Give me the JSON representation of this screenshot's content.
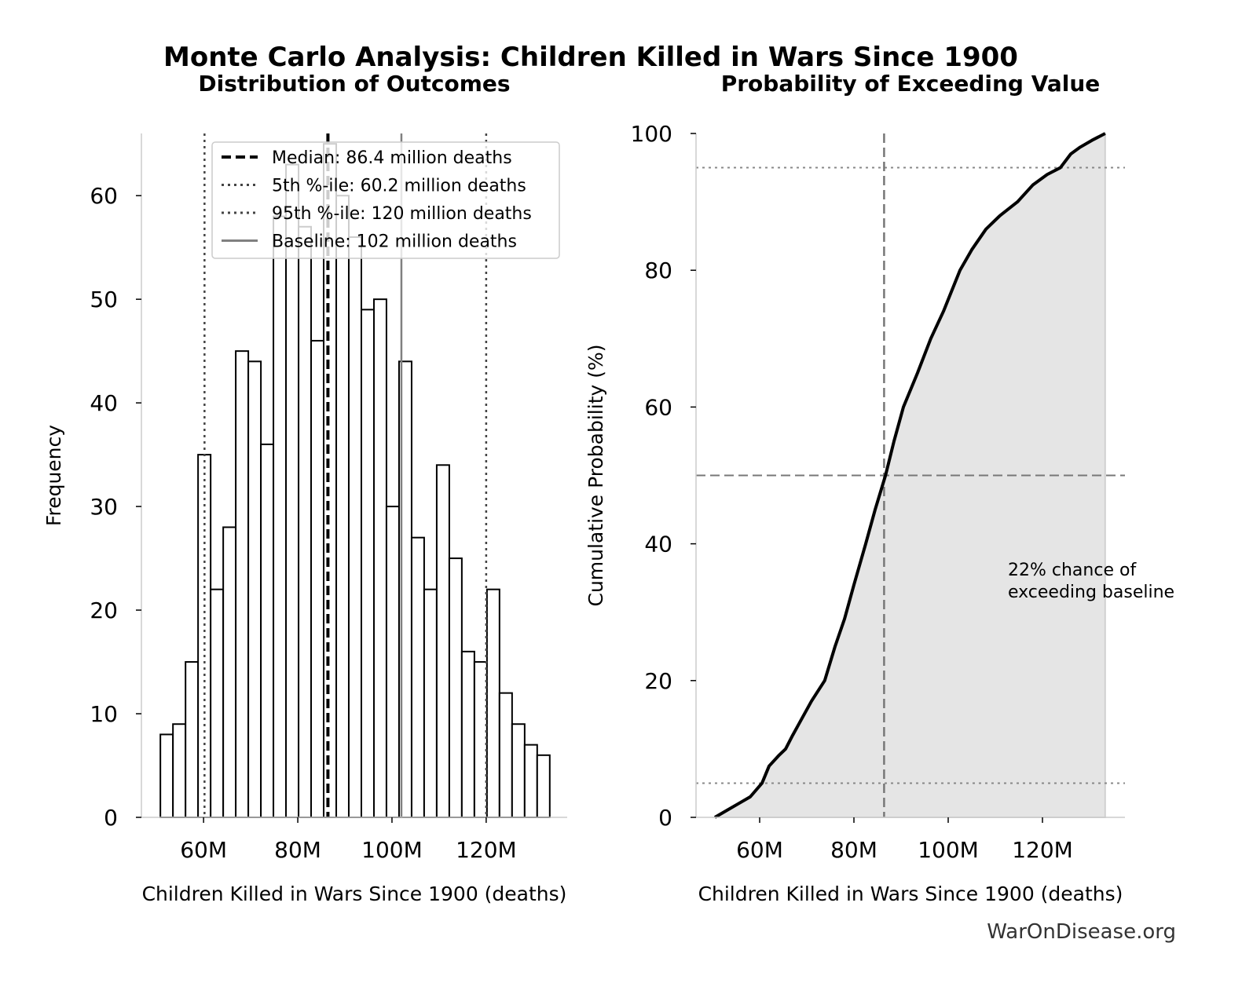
{
  "title": "Monte Carlo Analysis: Children Killed in Wars Since 1900",
  "footer": "WarOnDisease.org",
  "chart_data": [
    {
      "type": "histogram",
      "title": "Distribution of Outcomes",
      "x_label": "Children Killed in Wars Since 1900 (deaths)",
      "y_label": "Frequency",
      "bins": [
        50830000,
        53500000,
        56170000,
        58830000,
        61500000,
        64170000,
        66830000,
        69500000,
        72170000,
        74830000,
        77500000,
        80170000,
        82830000,
        85500000,
        88170000,
        90830000,
        93500000,
        96170000,
        98830000,
        101500000,
        104170000,
        106830000,
        109500000,
        112170000,
        114830000,
        117500000,
        120170000,
        122830000,
        125500000,
        128170000,
        130830000,
        133500000
      ],
      "values": [
        8,
        9,
        15,
        35,
        22,
        28,
        45,
        44,
        36,
        58,
        63,
        57,
        46,
        65,
        60,
        56,
        49,
        50,
        30,
        44,
        27,
        22,
        34,
        25,
        16,
        15,
        22,
        12,
        9,
        7,
        6
      ],
      "color": "#ffffff",
      "edgecolor": "#000000",
      "xlim": [
        46800000,
        137200000
      ],
      "xticks": [
        {
          "value": 60000000,
          "label": "60M"
        },
        {
          "value": 80000000,
          "label": "80M"
        },
        {
          "value": 100000000,
          "label": "100M"
        },
        {
          "value": 120000000,
          "label": "120M"
        }
      ],
      "ylim": [
        0,
        66
      ],
      "yticks": [
        0,
        10,
        20,
        30,
        40,
        50,
        60
      ],
      "legend": "upper right",
      "vlines": [
        {
          "value": 86400000,
          "label": "Median: 86.4 million deaths",
          "style": "dashed",
          "color": "#000000"
        },
        {
          "value": 60200000,
          "label": "5th %-ile: 60.2 million deaths",
          "style": "dotted",
          "color": "#444444"
        },
        {
          "value": 120000000,
          "label": "95th %-ile: 120 million deaths",
          "style": "dotted",
          "color": "#444444"
        },
        {
          "value": 102000000,
          "label": "Baseline: 102 million deaths",
          "style": "solid",
          "color": "#808080"
        }
      ]
    },
    {
      "type": "line",
      "title": "Probability of Exceeding Value",
      "x_label": "Children Killed in Wars Since 1900 (deaths)",
      "y_label": "Cumulative Probability (%)",
      "x": [
        50500000,
        53000000,
        55500000,
        58000000,
        60500000,
        62000000,
        64000000,
        65500000,
        67000000,
        69000000,
        71000000,
        73800000,
        76000000,
        78000000,
        80000000,
        82500000,
        84500000,
        86700000,
        88500000,
        90500000,
        93500000,
        96300000,
        99000000,
        102500000,
        105000000,
        108000000,
        111000000,
        114700000,
        118000000,
        121000000,
        123800000,
        126000000,
        128000000,
        130500000,
        133300000
      ],
      "series": [
        {
          "color": "#000000",
          "values": [
            0,
            1,
            2,
            3,
            5,
            7.5,
            9,
            10,
            12,
            14.5,
            17,
            20,
            25,
            29,
            34,
            40,
            45,
            50,
            55,
            60,
            65,
            70,
            74,
            80,
            83,
            86,
            88,
            90,
            92.5,
            94,
            95,
            97,
            98,
            99,
            100
          ]
        }
      ],
      "fill": "#e5e5e5",
      "xlim": [
        46500000,
        137500000
      ],
      "xticks": [
        {
          "value": 60000000,
          "label": "60M"
        },
        {
          "value": 80000000,
          "label": "80M"
        },
        {
          "value": 100000000,
          "label": "100M"
        },
        {
          "value": 120000000,
          "label": "120M"
        }
      ],
      "ylim": [
        0,
        100
      ],
      "yticks": [
        0,
        20,
        40,
        60,
        80,
        100
      ],
      "vlines": [
        {
          "value": 86400000,
          "style": "dashed",
          "color": "#777777"
        }
      ],
      "hlines": [
        {
          "value": 50,
          "style": "dashed",
          "color": "#777777"
        },
        {
          "value": 5,
          "style": "dotted",
          "color": "#888888"
        },
        {
          "value": 95,
          "style": "dotted",
          "color": "#888888"
        }
      ],
      "annotation": [
        "22% chance of",
        "exceeding baseline"
      ]
    }
  ]
}
